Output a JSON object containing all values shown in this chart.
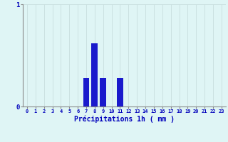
{
  "hours": [
    0,
    1,
    2,
    3,
    4,
    5,
    6,
    7,
    8,
    9,
    10,
    11,
    12,
    13,
    14,
    15,
    16,
    17,
    18,
    19,
    20,
    21,
    22,
    23
  ],
  "values": [
    0,
    0,
    0,
    0,
    0,
    0,
    0,
    0.28,
    0.62,
    0.28,
    0,
    0.28,
    0,
    0,
    0,
    0,
    0,
    0,
    0,
    0,
    0,
    0,
    0,
    0
  ],
  "bar_color": "#1a1acc",
  "background_color": "#dff5f5",
  "grid_color_v": "#c8dede",
  "grid_color_h": "#c8dede",
  "axis_color": "#888888",
  "xlabel": "Précipitations 1h ( mm )",
  "xlabel_color": "#0000bb",
  "tick_color": "#0000bb",
  "ylim": [
    0,
    1.0
  ],
  "xlim": [
    -0.5,
    23.5
  ],
  "yticks": [
    0,
    1
  ],
  "xticks": [
    0,
    1,
    2,
    3,
    4,
    5,
    6,
    7,
    8,
    9,
    10,
    11,
    12,
    13,
    14,
    15,
    16,
    17,
    18,
    19,
    20,
    21,
    22,
    23
  ]
}
